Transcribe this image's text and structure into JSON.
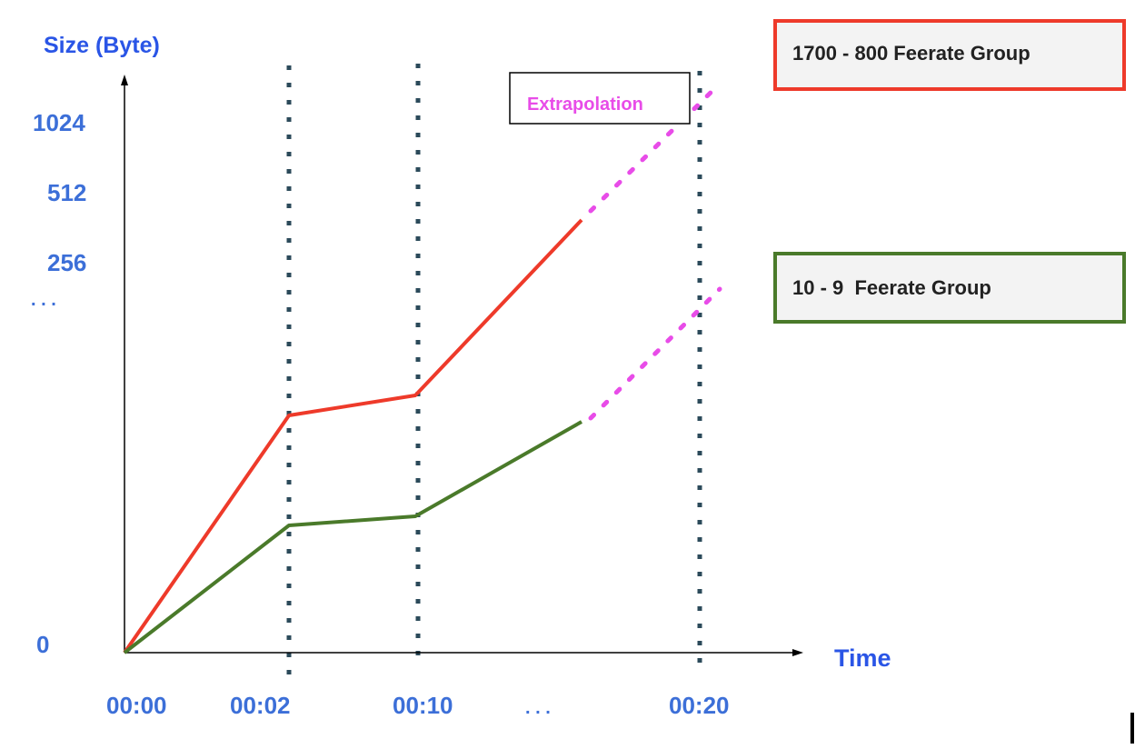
{
  "axes": {
    "y_title": "Size (Byte)",
    "x_title": "Time",
    "y_ticks": [
      "1024",
      "512",
      "256",
      ". . .",
      "0"
    ],
    "x_ticks": [
      "00:00",
      "00:02",
      "00:10",
      ". . .",
      "00:20"
    ]
  },
  "legend": {
    "high_group": "1700 - 800 Feerate Group",
    "low_group": "10 - 9  Feerate Group"
  },
  "annotation": {
    "extrapolation": "Extrapolation"
  },
  "colors": {
    "high_group": "#ee3a2a",
    "low_group": "#4a7a2a",
    "extrapolation": "#e84ce8",
    "axis_text": "#2a55e6",
    "tick_text": "#3c6fd8",
    "guide_line": "#2b4a5a",
    "legend_fill": "#f3f3f3"
  }
}
